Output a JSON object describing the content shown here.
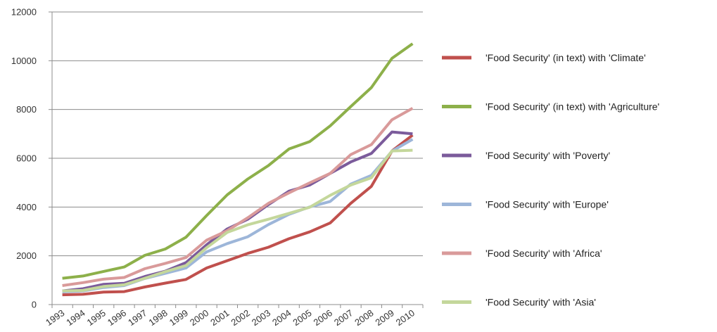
{
  "chart_data": {
    "type": "line",
    "title": "",
    "xlabel": "",
    "ylabel": "",
    "ylim": [
      0,
      12000
    ],
    "yticks": [
      0,
      2000,
      4000,
      6000,
      8000,
      10000,
      12000
    ],
    "grid": "horizontal",
    "legend_position": "right",
    "categories": [
      "1993",
      "1994",
      "1995",
      "1996",
      "1997",
      "1998",
      "1999",
      "2000",
      "2001",
      "2002",
      "2003",
      "2004",
      "2005",
      "2006",
      "2007",
      "2008",
      "2009",
      "2010"
    ],
    "series": [
      {
        "name": "'Food Security' (in text) with 'Climate'",
        "color": "#c0504d",
        "values": [
          400,
          420,
          510,
          530,
          720,
          880,
          1030,
          1500,
          1800,
          2100,
          2350,
          2700,
          2980,
          3350,
          4150,
          4850,
          6300,
          6950
        ]
      },
      {
        "name": "'Food Security' (in text) with 'Agriculture'",
        "color": "#8db04a",
        "values": [
          1080,
          1170,
          1360,
          1540,
          2020,
          2280,
          2760,
          3650,
          4500,
          5150,
          5700,
          6380,
          6680,
          7330,
          8120,
          8900,
          10100,
          10700
        ]
      },
      {
        "name": "'Food Security' with 'Poverty'",
        "color": "#7b5b9b",
        "values": [
          560,
          650,
          830,
          870,
          1150,
          1370,
          1720,
          2450,
          3100,
          3500,
          4100,
          4650,
          4900,
          5380,
          5850,
          6200,
          7080,
          7000
        ]
      },
      {
        "name": "'Food Security' with 'Europe'",
        "color": "#9db6d9",
        "values": [
          520,
          560,
          700,
          780,
          1070,
          1280,
          1500,
          2160,
          2500,
          2780,
          3280,
          3700,
          4000,
          4230,
          4940,
          5300,
          6290,
          6780
        ]
      },
      {
        "name": "'Food Security' with 'Africa'",
        "color": "#d99a9a",
        "values": [
          780,
          900,
          1040,
          1110,
          1470,
          1690,
          1930,
          2640,
          3030,
          3560,
          4150,
          4580,
          4990,
          5380,
          6150,
          6560,
          7580,
          8050
        ]
      },
      {
        "name": "'Food Security' with 'Asia'",
        "color": "#c4d79b",
        "values": [
          560,
          580,
          740,
          810,
          1080,
          1350,
          1600,
          2330,
          2960,
          3270,
          3500,
          3740,
          3990,
          4480,
          4900,
          5200,
          6300,
          6330
        ]
      }
    ]
  }
}
